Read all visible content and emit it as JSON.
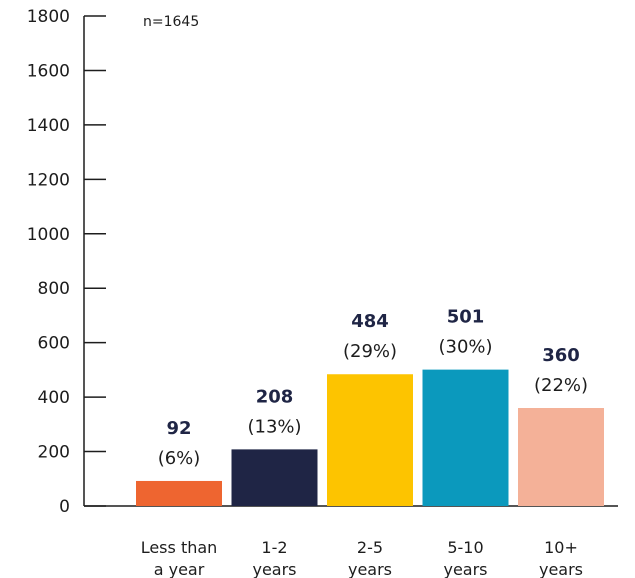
{
  "chart_data": {
    "type": "bar",
    "annotation": "n=1645",
    "categories": [
      [
        "Less than",
        "a year"
      ],
      [
        "1-2",
        "years"
      ],
      [
        "2-5",
        "years"
      ],
      [
        "5-10",
        "years"
      ],
      [
        "10+",
        "years"
      ]
    ],
    "values": [
      92,
      208,
      484,
      501,
      360
    ],
    "value_labels": [
      "92",
      "208",
      "484",
      "501",
      "360"
    ],
    "percent_labels": [
      "(6%)",
      "(13%)",
      "(29%)",
      "(30%)",
      "(22%)"
    ],
    "colors": [
      "#ee6530",
      "#1f2545",
      "#fdc400",
      "#0b99bd",
      "#f4b198"
    ],
    "ylim": [
      0,
      1800
    ],
    "yticks": [
      "0",
      "200",
      "400",
      "600",
      "800",
      "1000",
      "1200",
      "1400",
      "1600",
      "1800"
    ],
    "grid": false,
    "legend": "none"
  }
}
